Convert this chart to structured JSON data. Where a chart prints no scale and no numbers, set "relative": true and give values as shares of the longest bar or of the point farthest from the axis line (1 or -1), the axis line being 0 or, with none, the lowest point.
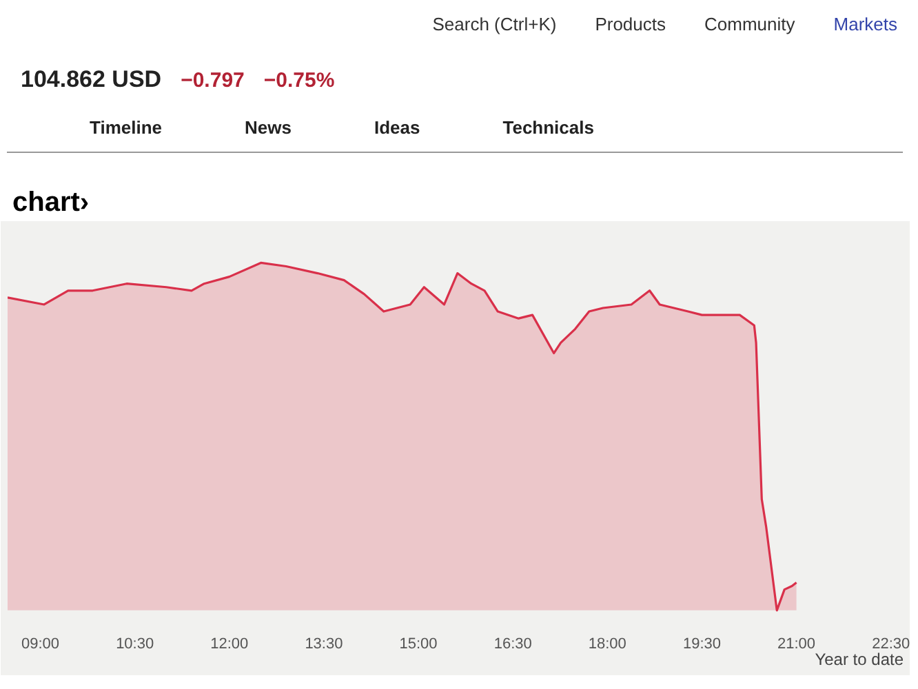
{
  "chart_data": {
    "type": "area",
    "title": "chart›",
    "relative": true,
    "grid": false,
    "tick_labels": "x",
    "annotations": [
      "Search (Ctrl+K)",
      "Products",
      "Community",
      "Markets",
      "104.862 USD",
      "−0.797",
      "−0.75%",
      "Timeline",
      "News",
      "Ideas",
      "Technicals",
      "Year to date"
    ],
    "xlim": [
      8.48,
      22.7
    ],
    "xticks": [
      {
        "value": 9,
        "label": "09:00"
      },
      {
        "value": 10.5,
        "label": "10:30"
      },
      {
        "value": 12,
        "label": "12:00"
      },
      {
        "value": 13.5,
        "label": "13:30"
      },
      {
        "value": 15,
        "label": "15:00"
      },
      {
        "value": 16.5,
        "label": "16:30"
      },
      {
        "value": 18,
        "label": "18:00"
      },
      {
        "value": 19.5,
        "label": "19:30"
      },
      {
        "value": 21,
        "label": "21:00"
      },
      {
        "value": 22.5,
        "label": "22:30"
      }
    ],
    "x": [
      8.48,
      9.06,
      9.44,
      9.83,
      10.37,
      11.0,
      11.4,
      11.6,
      12.0,
      12.5,
      12.9,
      13.4,
      13.82,
      14.14,
      14.45,
      14.87,
      15.09,
      15.41,
      15.62,
      15.84,
      16.05,
      16.26,
      16.59,
      16.81,
      17.15,
      17.26,
      17.49,
      17.71,
      17.93,
      18.38,
      18.67,
      18.83,
      19.28,
      19.5,
      19.86,
      20.1,
      20.33,
      20.36,
      20.45,
      20.52,
      20.69,
      20.81,
      20.93,
      21.0
    ],
    "series": [
      {
        "color": "#d9304a",
        "values": [
          0.9,
          0.88,
          0.92,
          0.92,
          0.94,
          0.93,
          0.92,
          0.94,
          0.96,
          1.0,
          0.99,
          0.97,
          0.95,
          0.91,
          0.86,
          0.88,
          0.93,
          0.88,
          0.97,
          0.94,
          0.92,
          0.86,
          0.84,
          0.85,
          0.74,
          0.77,
          0.81,
          0.86,
          0.87,
          0.88,
          0.92,
          0.88,
          0.86,
          0.85,
          0.85,
          0.85,
          0.82,
          0.77,
          0.32,
          0.24,
          0.0,
          0.06,
          0.07,
          0.08
        ]
      }
    ]
  }
}
